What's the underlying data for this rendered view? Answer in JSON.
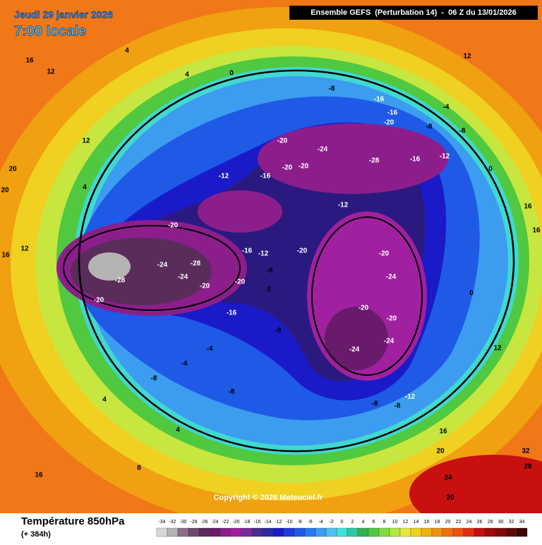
{
  "header": {
    "date": "Jeudi 29 janvier 2026",
    "time": "7:00 locale",
    "model": "Ensemble GEFS  (Perturbation 14)  -  06 Z du 13/01/2026"
  },
  "map": {
    "contour_labels": [
      16,
      12,
      4,
      4,
      0,
      -8,
      -16,
      -16,
      -20,
      -8,
      -4,
      -8,
      -12,
      -20,
      -24,
      -20,
      -20,
      -28,
      -16,
      -16,
      -12,
      -20,
      -12,
      -24,
      -28,
      -24,
      -20,
      -28,
      -20,
      -20,
      -16,
      -12,
      -20,
      -20,
      -24,
      -20,
      -20,
      -24,
      -24,
      -8,
      0,
      -16,
      -8,
      -4,
      -4,
      -8,
      -8,
      -8,
      -8,
      -12,
      4,
      4,
      8,
      16,
      20,
      20,
      16,
      12,
      16,
      16,
      12,
      12,
      16,
      20,
      24,
      20,
      32,
      28,
      0,
      0,
      12,
      4
    ]
  },
  "copyright": "Copyright © 2026 Meteociel.fr",
  "legend": {
    "title": "Température 850hPa",
    "lead": "(+ 384h)",
    "ticks": [
      -34,
      -32,
      -30,
      -28,
      -26,
      -24,
      -22,
      -20,
      -18,
      -16,
      -14,
      -12,
      -10,
      -8,
      -6,
      -4,
      -2,
      0,
      2,
      4,
      6,
      8,
      10,
      12,
      14,
      16,
      18,
      20,
      22,
      24,
      26,
      28,
      30,
      32,
      34
    ],
    "colors": [
      "#d8d8d8",
      "#b4b4b4",
      "#8c6e8c",
      "#6e4a6e",
      "#5a2c5a",
      "#6a1a6a",
      "#8c1e8c",
      "#a020a0",
      "#7a2a9a",
      "#4a2c8c",
      "#2a2aa0",
      "#1a1ac8",
      "#1e3cdc",
      "#1e5ae6",
      "#2878f0",
      "#3c9cf0",
      "#50c0f0",
      "#40e0e0",
      "#30c8a0",
      "#30b450",
      "#50c840",
      "#80dc40",
      "#b4e640",
      "#e6e640",
      "#f0d020",
      "#f0b010",
      "#f09010",
      "#f07010",
      "#f05010",
      "#e03010",
      "#c81010",
      "#a00a0a",
      "#800a0a",
      "#600808",
      "#400404"
    ]
  }
}
